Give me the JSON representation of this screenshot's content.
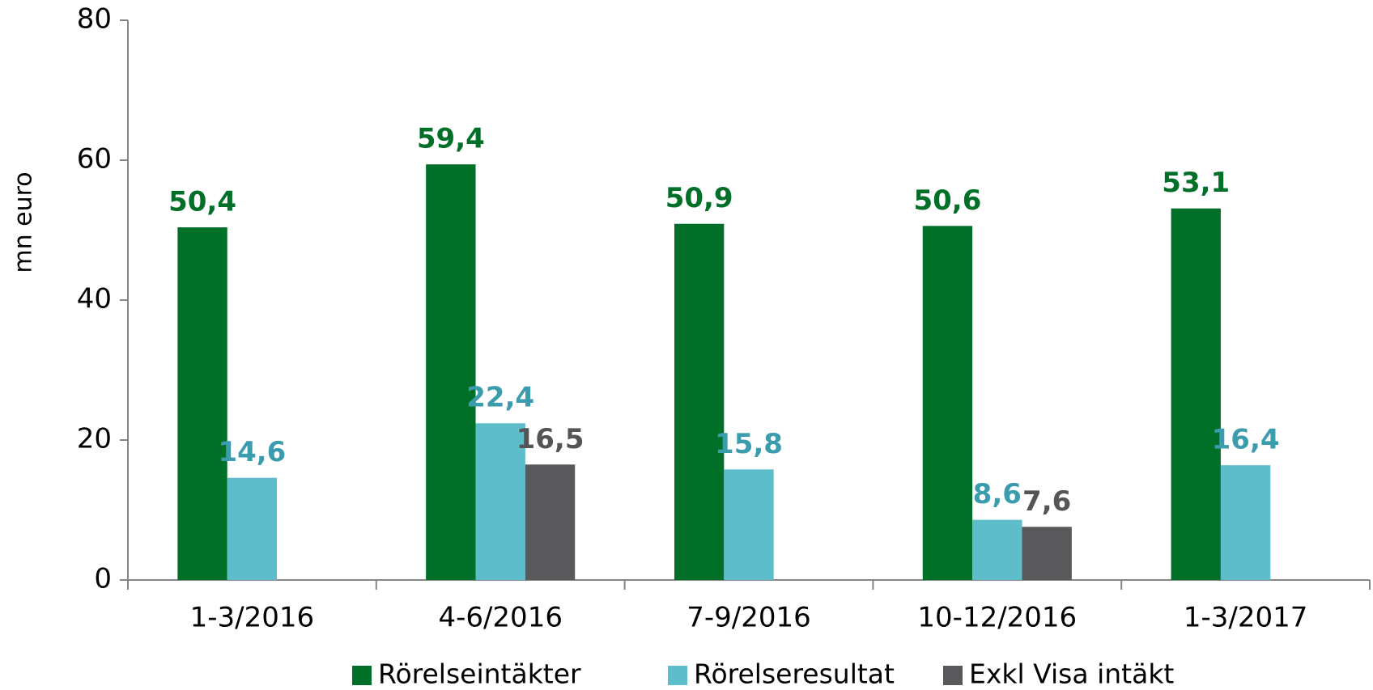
{
  "chart_data": {
    "type": "bar",
    "y_axis_label": "mn euro",
    "categories": [
      "1-3/2016",
      "4-6/2016",
      "7-9/2016",
      "10-12/2016",
      "1-3/2017"
    ],
    "series": [
      {
        "name": "Rörelseintäkter",
        "color": "#007028",
        "label_color": "#007028",
        "values": [
          50.4,
          59.4,
          50.9,
          50.6,
          53.1
        ],
        "value_labels": [
          "50,4",
          "59,4",
          "50,9",
          "50,6",
          "53,1"
        ]
      },
      {
        "name": "Rörelseresultat",
        "color": "#5dbdcb",
        "label_color": "#3b9cad",
        "values": [
          14.6,
          22.4,
          15.8,
          8.6,
          16.4
        ],
        "value_labels": [
          "14,6",
          "22,4",
          "15,8",
          "8,6",
          "16,4"
        ]
      },
      {
        "name": "Exkl Visa intäkt",
        "color": "#59595b",
        "label_color": "#555557",
        "values": [
          null,
          16.5,
          null,
          7.6,
          null
        ],
        "value_labels": [
          null,
          "16,5",
          null,
          "7,6",
          null
        ]
      }
    ],
    "ylim": [
      0,
      80
    ],
    "yticks": [
      0,
      20,
      40,
      60,
      80
    ],
    "grid": false,
    "legend": "bottom"
  }
}
